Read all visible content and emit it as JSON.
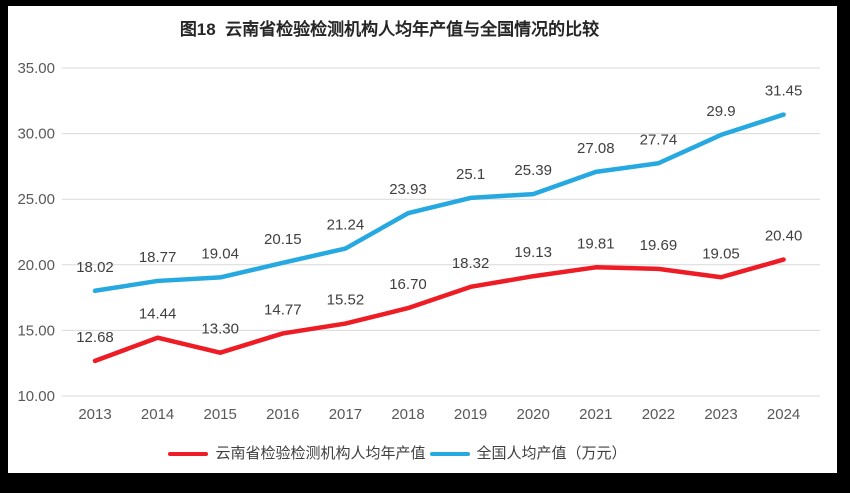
{
  "title": "图18  云南省检验检测机构人均年产值与全国情况的比较",
  "chart_data": {
    "type": "line",
    "title": "图18 云南省检验检测机构人均年产值与全国情况的比较",
    "categories": [
      "2013",
      "2014",
      "2015",
      "2016",
      "2017",
      "2018",
      "2019",
      "2020",
      "2021",
      "2022",
      "2023",
      "2024"
    ],
    "series": [
      {
        "name": "云南省检验检测机构人均年产值",
        "color": "#EE1C25",
        "values": [
          12.68,
          14.44,
          13.3,
          14.77,
          15.52,
          16.7,
          18.32,
          19.13,
          19.81,
          19.69,
          19.05,
          20.4
        ],
        "labels": [
          "12.68",
          "14.44",
          "13.30",
          "14.77",
          "15.52",
          "16.70",
          "18.32",
          "19.13",
          "19.81",
          "19.69",
          "19.05",
          "20.40"
        ]
      },
      {
        "name": "全国人均产值（万元）",
        "color": "#26A9E0",
        "values": [
          18.02,
          18.77,
          19.04,
          20.15,
          21.24,
          23.93,
          25.1,
          25.39,
          27.08,
          27.74,
          29.9,
          31.45
        ],
        "labels": [
          "18.02",
          "18.77",
          "19.04",
          "20.15",
          "21.24",
          "23.93",
          "25.1",
          "25.39",
          "27.08",
          "27.74",
          "29.9",
          "31.45"
        ]
      }
    ],
    "y_axis": {
      "min": 10,
      "max": 35,
      "step": 5,
      "tick_labels": [
        "10.00",
        "15.00",
        "20.00",
        "25.00",
        "30.00",
        "35.00"
      ]
    },
    "grid": true,
    "legend_position": "bottom",
    "grid_color": "#D9D9D9",
    "axis_text_color": "#595959",
    "data_label_color": "#404040",
    "background_color": "#FFFFFF",
    "frame_color": "#000000"
  }
}
